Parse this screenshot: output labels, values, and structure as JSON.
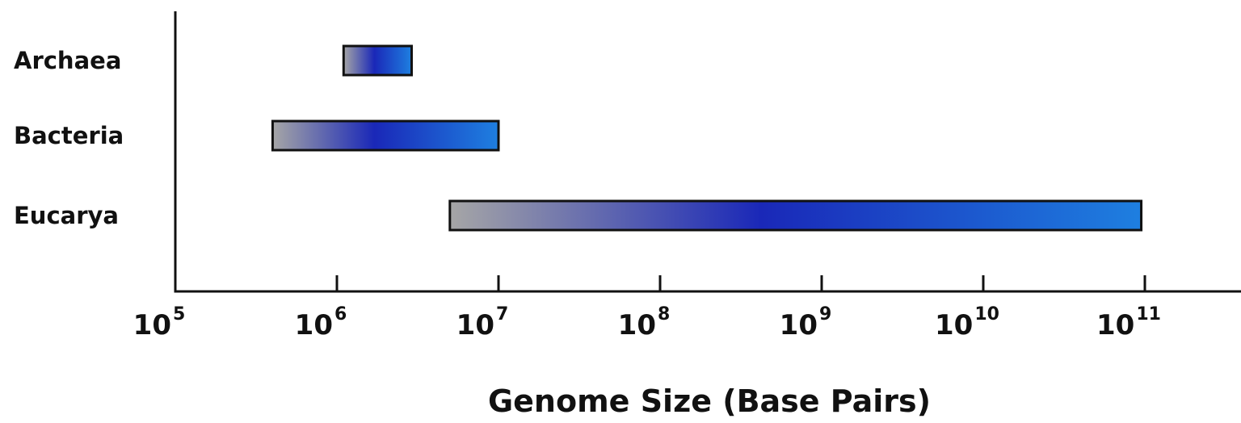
{
  "chart_data": {
    "type": "bar",
    "orientation": "horizontal",
    "subtype": "floating-range",
    "title": "",
    "xlabel": "Genome Size (Base Pairs)",
    "ylabel": "",
    "x_scale": "log10",
    "xlim": [
      100000,
      300000000000
    ],
    "x_ticks": [
      {
        "value": 100000,
        "base": "10",
        "exp": "5"
      },
      {
        "value": 1000000,
        "base": "10",
        "exp": "6"
      },
      {
        "value": 10000000,
        "base": "10",
        "exp": "7"
      },
      {
        "value": 100000000,
        "base": "10",
        "exp": "8"
      },
      {
        "value": 1000000000,
        "base": "10",
        "exp": "9"
      },
      {
        "value": 10000000000,
        "base": "10",
        "exp": "10"
      },
      {
        "value": 100000000000,
        "base": "10",
        "exp": "11"
      }
    ],
    "categories": [
      "Archaea",
      "Bacteria",
      "Eucarya"
    ],
    "ranges": [
      {
        "category": "Archaea",
        "min": 1100000,
        "max": 2900000
      },
      {
        "category": "Bacteria",
        "min": 400000,
        "max": 10000000
      },
      {
        "category": "Eucarya",
        "min": 5000000,
        "max": 95000000000
      }
    ],
    "grid": false,
    "legend": "none",
    "colors": {
      "gradient_start": "#a6a6a6",
      "gradient_mid": "#1a28b8",
      "gradient_end": "#1e7fe0",
      "outline": "#111111"
    }
  }
}
